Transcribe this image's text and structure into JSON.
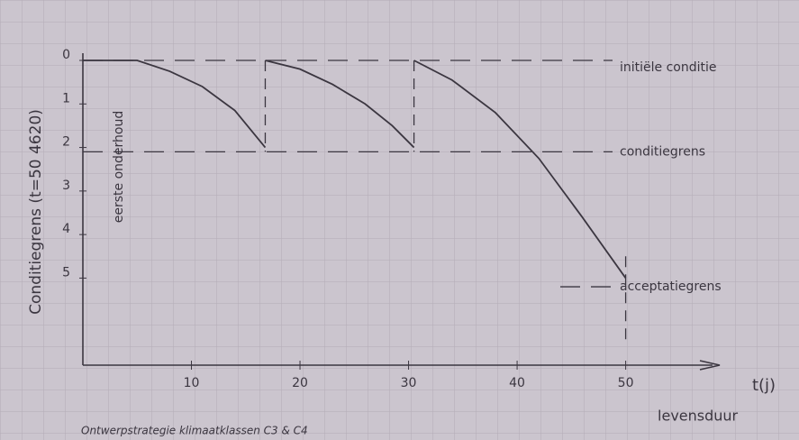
{
  "chart_data": {
    "type": "line",
    "y_label": "Conditiegrens (t=50 4620)",
    "x_label": "t(j)",
    "caption": "Ontwerpstrategie klimaatklassen C3 & C4",
    "annotation": "eerste onderhoud",
    "xlim": [
      0,
      58
    ],
    "ylim": [
      7,
      0
    ],
    "xticks": [
      10,
      20,
      30,
      40,
      50
    ],
    "yticks": [
      0,
      1,
      2,
      3,
      4,
      5
    ],
    "color": "#3b3640",
    "series": [
      {
        "x": [
          0,
          5,
          8,
          11,
          14,
          16.8
        ],
        "values": [
          0,
          0,
          0.25,
          0.6,
          1.15,
          2.0
        ]
      },
      {
        "x": [
          16.8,
          20,
          23,
          26,
          28.5,
          30.5
        ],
        "values": [
          0,
          0.2,
          0.55,
          1.0,
          1.5,
          2.0
        ]
      },
      {
        "x": [
          30.5,
          34,
          38,
          42,
          46,
          50
        ],
        "values": [
          0,
          0.45,
          1.2,
          2.25,
          3.6,
          5.0
        ]
      }
    ],
    "reference_lines": [
      {
        "axis": "y",
        "value": 0,
        "label": "initiële conditie"
      },
      {
        "axis": "y",
        "value": 2.1,
        "label": "conditiegrens"
      },
      {
        "axis": "y",
        "value": 5.2,
        "label": "acceptatiegrens"
      },
      {
        "axis": "x",
        "value": 16.8,
        "span": [
          0,
          2.1
        ]
      },
      {
        "axis": "x",
        "value": 30.5,
        "span": [
          0,
          2.1
        ]
      },
      {
        "axis": "x",
        "value": 50,
        "span": [
          4.5,
          6.5
        ],
        "label": "levensduur"
      }
    ]
  }
}
